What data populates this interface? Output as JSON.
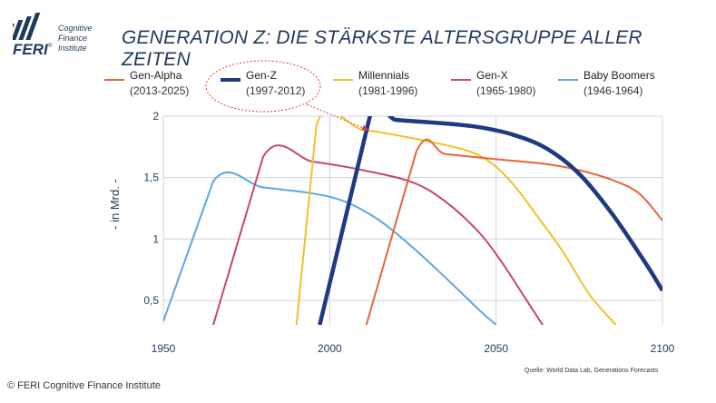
{
  "logo": {
    "brand": "FERI",
    "registered": "®",
    "lines": [
      "Cognitive",
      "Finance",
      "Institute"
    ]
  },
  "title": "GENERATION Z: DIE STÄRKSTE ALTERSGRUPPE ALLER ZEITEN",
  "footer": "© FERI Cognitive Finance Institute",
  "source": "Quelle: World Data Lab, Generations Forecasts",
  "colors": {
    "title": "#1f3b5b",
    "gen_alpha": "#e8643a",
    "gen_z": "#1d3a82",
    "millennials": "#f5bf29",
    "gen_x": "#c9456b",
    "baby_boomers": "#5ba6e6",
    "highlight": "#d9413b"
  },
  "chart_data": {
    "type": "line",
    "title": "GENERATION Z: DIE STÄRKSTE ALTERSGRUPPE ALLER ZEITEN",
    "xlabel": "",
    "ylabel": "- in Mrd. -",
    "xlim": [
      1950,
      2100
    ],
    "ylim": [
      0.3,
      2.0
    ],
    "x_ticks": [
      "1950",
      "2000",
      "2050",
      "2100"
    ],
    "y_ticks": [
      "0,5",
      "1",
      "1,5",
      "2"
    ],
    "grid": true,
    "legend_position": "top",
    "series": [
      {
        "key": "gen_alpha",
        "name": "Gen-Alpha",
        "period": "(2013-2025)",
        "color": "#e8643a",
        "width": 2,
        "x": [
          2011,
          2026,
          2035,
          2050,
          2065,
          2075,
          2085,
          2093,
          2100
        ],
        "y": [
          0.3,
          1.71,
          1.69,
          1.65,
          1.61,
          1.56,
          1.48,
          1.37,
          1.15
        ]
      },
      {
        "key": "gen_z",
        "name": "Gen-Z",
        "period": "(1997-2012)",
        "color": "#1d3a82",
        "width": 4.5,
        "highlight": true,
        "x": [
          1997,
          2012,
          2020,
          2035,
          2045,
          2055,
          2065,
          2075,
          2085,
          2095,
          2100
        ],
        "y": [
          0.3,
          1.99,
          1.97,
          1.94,
          1.91,
          1.85,
          1.74,
          1.53,
          1.2,
          0.8,
          0.58
        ]
      },
      {
        "key": "millennials",
        "name": "Millennials",
        "period": "(1981-1996)",
        "color": "#f5bf29",
        "width": 2,
        "x": [
          1990,
          1996,
          2010,
          2025,
          2040,
          2048,
          2055,
          2062,
          2070,
          2078,
          2086
        ],
        "y": [
          0.3,
          1.93,
          1.89,
          1.82,
          1.73,
          1.63,
          1.45,
          1.2,
          0.9,
          0.55,
          0.3
        ]
      },
      {
        "key": "gen_x",
        "name": "Gen-X",
        "period": "(1965-1980)",
        "color": "#c9456b",
        "width": 2,
        "x": [
          1965,
          1980,
          1995,
          2010,
          2025,
          2035,
          2045,
          2052,
          2058,
          2064
        ],
        "y": [
          0.3,
          1.67,
          1.63,
          1.56,
          1.46,
          1.3,
          1.05,
          0.8,
          0.55,
          0.3
        ]
      },
      {
        "key": "baby_boomers",
        "name": "Baby Boomers",
        "period": "(1946-1964)",
        "color": "#5ba6e6",
        "width": 2,
        "x": [
          1950,
          1965,
          1980,
          1995,
          2005,
          2015,
          2025,
          2035,
          2045,
          2050
        ],
        "y": [
          0.33,
          1.47,
          1.42,
          1.37,
          1.3,
          1.15,
          0.93,
          0.68,
          0.42,
          0.3
        ]
      }
    ]
  }
}
